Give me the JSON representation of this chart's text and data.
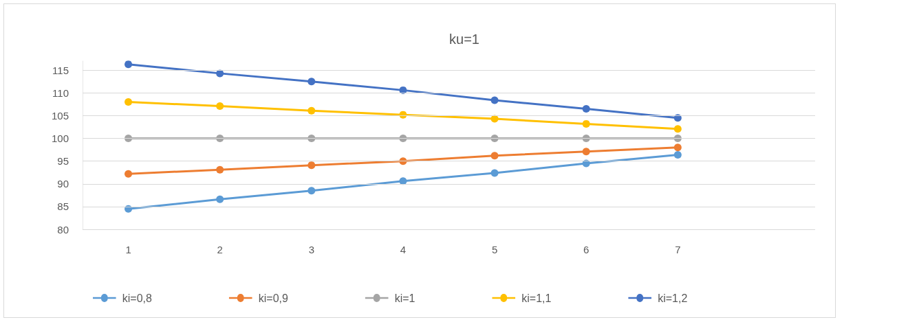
{
  "chart_data": {
    "type": "line",
    "title": "ku=1",
    "categories": [
      "1",
      "2",
      "3",
      "4",
      "5",
      "6",
      "7",
      null
    ],
    "series": [
      {
        "name": "ki=0,8",
        "color": "#5b9bd5",
        "values": [
          84.5,
          86.6,
          88.5,
          90.6,
          92.4,
          94.5,
          96.4,
          null
        ]
      },
      {
        "name": "ki=0,9",
        "color": "#ed7d31",
        "values": [
          92.2,
          93.1,
          94.1,
          95.0,
          96.2,
          97.1,
          98.0,
          null
        ]
      },
      {
        "name": "ki=1",
        "color": "#a5a5a5",
        "values": [
          100,
          100,
          100,
          100,
          100,
          100,
          100,
          null
        ]
      },
      {
        "name": "ki=1,1",
        "color": "#ffc000",
        "values": [
          108.0,
          107.1,
          106.1,
          105.2,
          104.3,
          103.2,
          102.1,
          null
        ]
      },
      {
        "name": "ki=1,2",
        "color": "#4472c4",
        "values": [
          116.3,
          114.3,
          112.5,
          110.6,
          108.4,
          106.5,
          104.5,
          null
        ]
      }
    ],
    "ylim": [
      80,
      117
    ],
    "yticks": [
      80,
      85,
      90,
      95,
      100,
      105,
      110,
      115
    ],
    "grid": "y",
    "legend": "bottom",
    "marker": "circle",
    "line_style": "solid"
  }
}
